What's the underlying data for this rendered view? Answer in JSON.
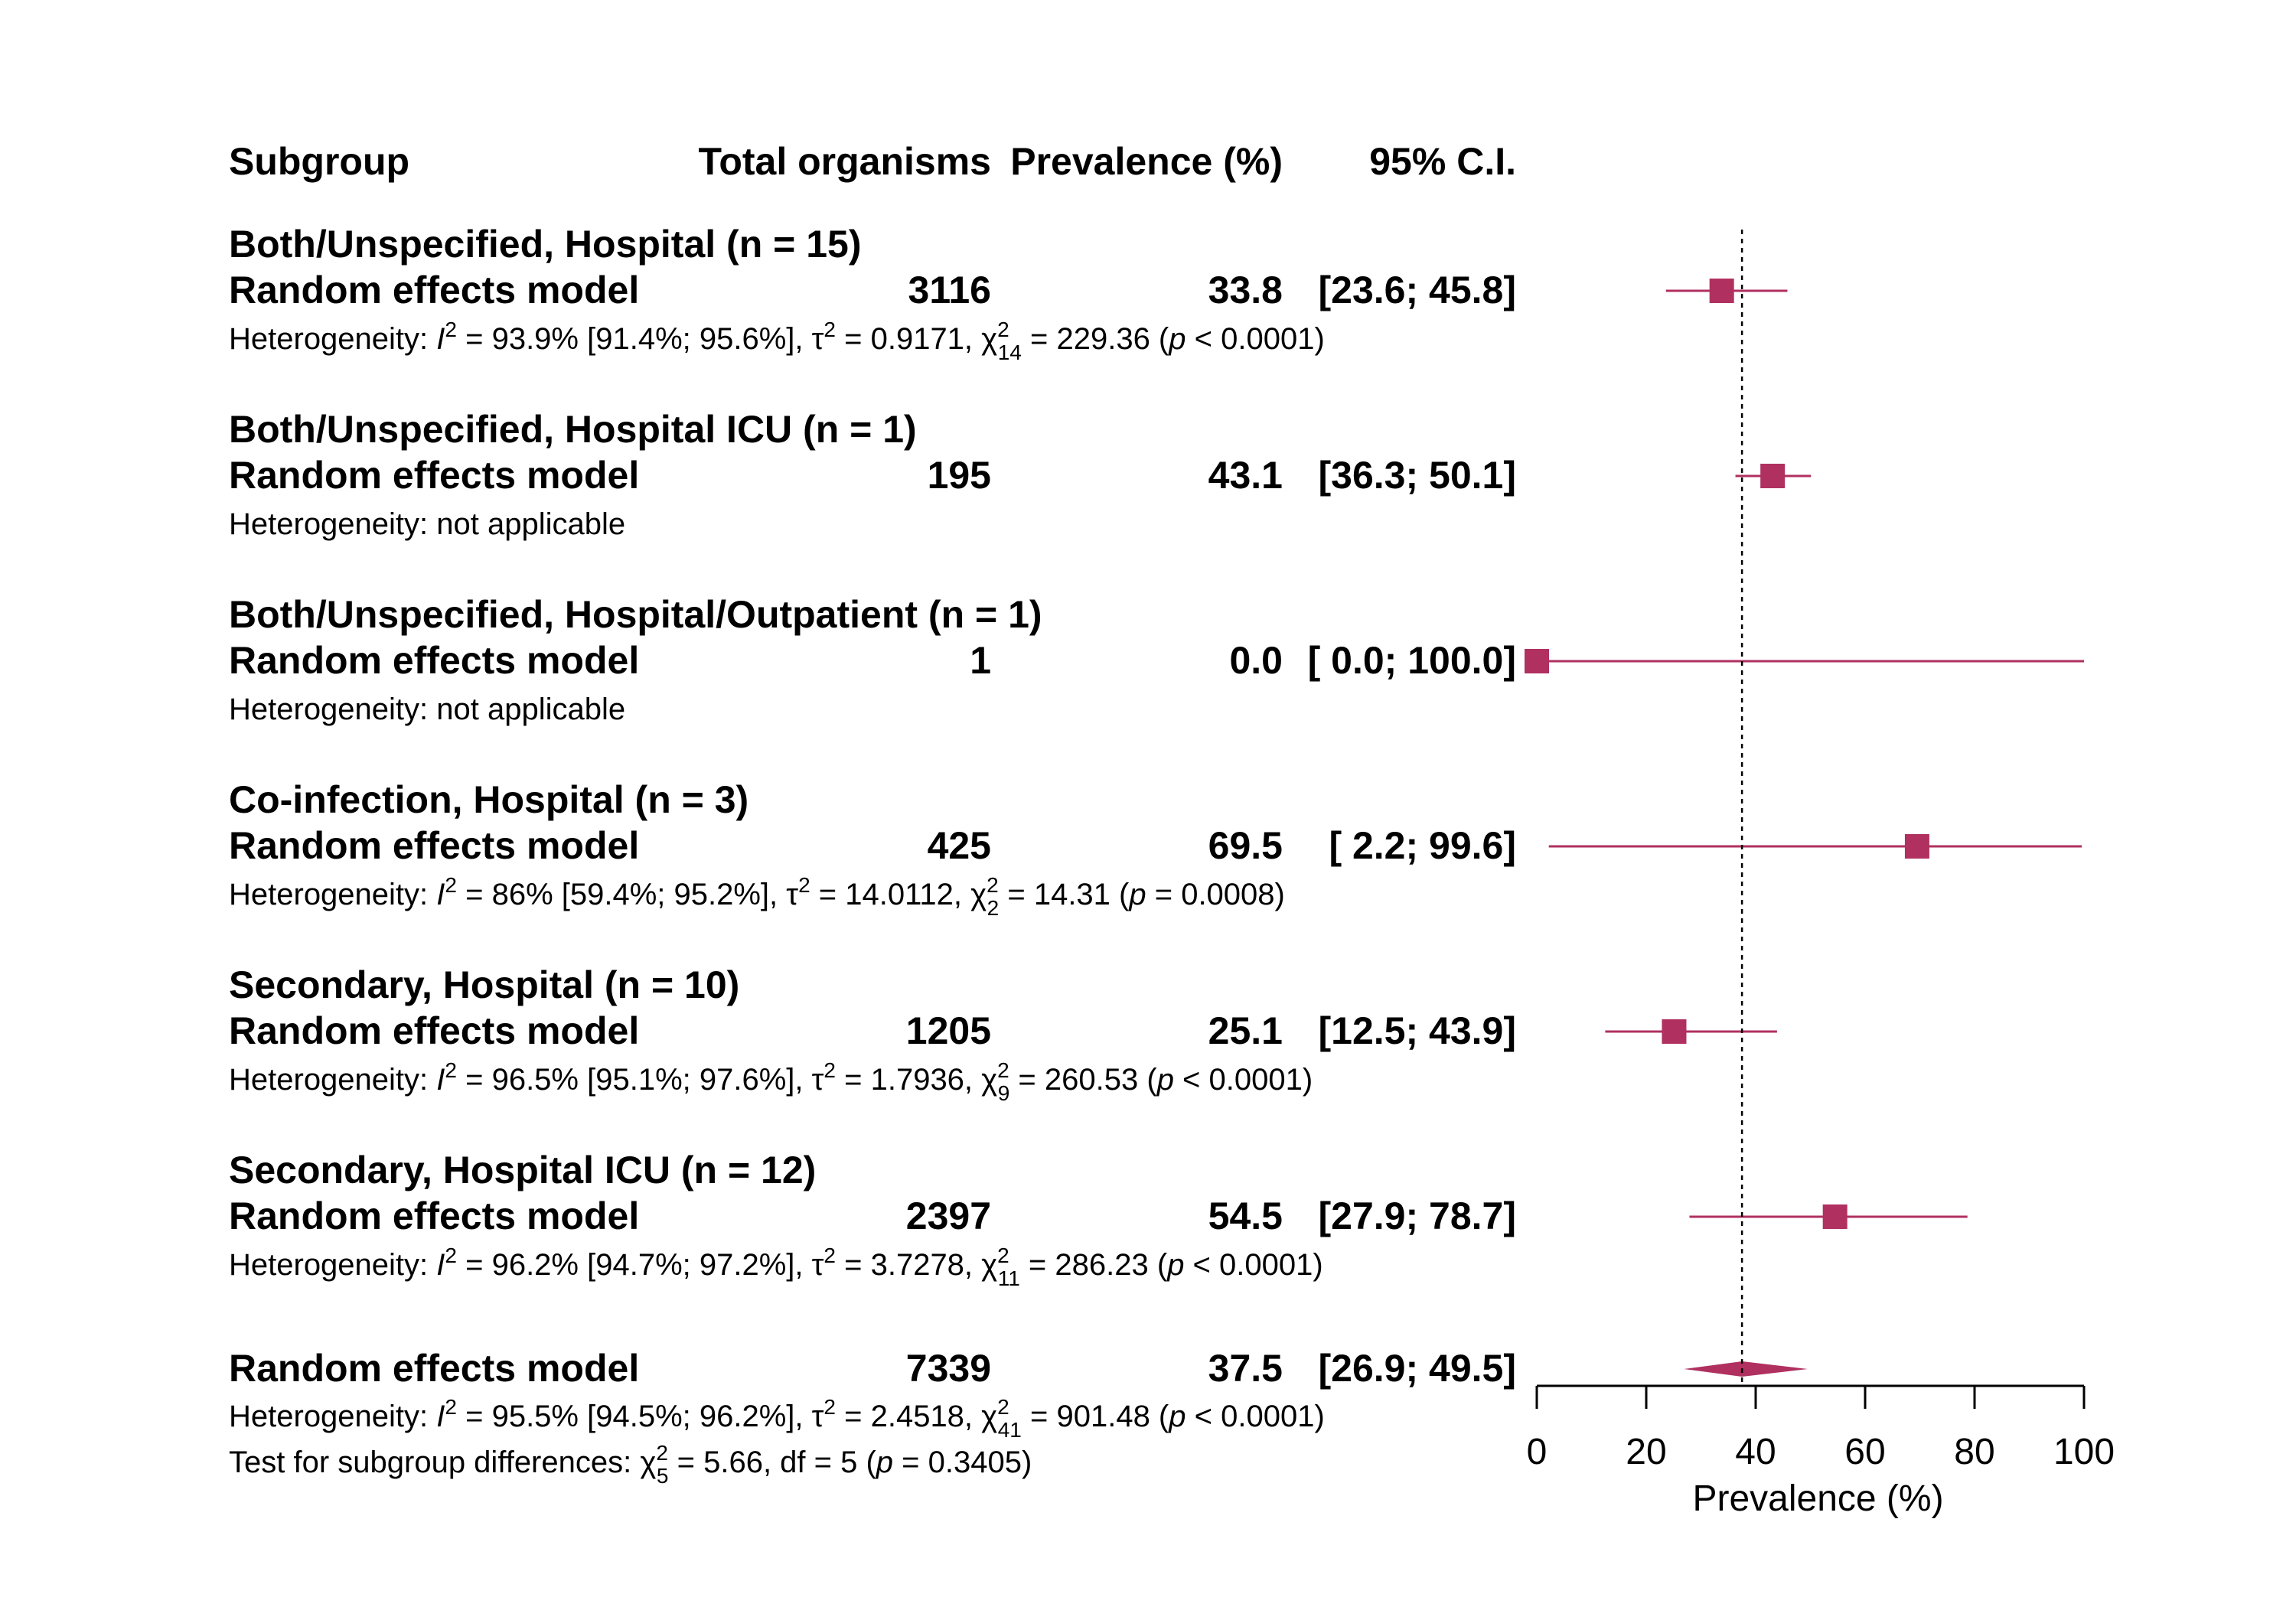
{
  "chart_data": {
    "type": "forest",
    "headers": {
      "subgroup": "Subgroup",
      "total": "Total organisms",
      "prevalence": "Prevalence (%)",
      "ci": "95% C.I."
    },
    "model_label": "Random effects model",
    "subgroups": [
      {
        "title": "Both/Unspecified, Hospital (n = 15)",
        "total": "3116",
        "prev_text": "33.8",
        "ci_text": "[23.6;  45.8]",
        "prev": 33.8,
        "lower": 23.6,
        "upper": 45.8,
        "het": {
          "kind": "stats",
          "I2": "93.9%",
          "I2ci": "[91.4%; 95.6%]",
          "tau2": "0.9171",
          "df": "14",
          "Q": "229.36",
          "p": "< 0.0001"
        }
      },
      {
        "title": "Both/Unspecified, Hospital ICU (n = 1)",
        "total": "195",
        "prev_text": "43.1",
        "ci_text": "[36.3;  50.1]",
        "prev": 43.1,
        "lower": 36.3,
        "upper": 50.1,
        "het": {
          "kind": "text",
          "text": "Heterogeneity: not applicable"
        }
      },
      {
        "title": "Both/Unspecified, Hospital/Outpatient (n = 1)",
        "total": "1",
        "prev_text": "0.0",
        "ci_text": "[ 0.0; 100.0]",
        "prev": 0.0,
        "lower": 0.0,
        "upper": 100.0,
        "het": {
          "kind": "text",
          "text": "Heterogeneity: not applicable"
        }
      },
      {
        "title": "Co-infection, Hospital (n = 3)",
        "total": "425",
        "prev_text": "69.5",
        "ci_text": "[ 2.2;  99.6]",
        "prev": 69.5,
        "lower": 2.2,
        "upper": 99.6,
        "het": {
          "kind": "stats",
          "I2": "86%",
          "I2ci": "[59.4%; 95.2%]",
          "tau2": "14.0112",
          "df": "2",
          "Q": "14.31",
          "p": "= 0.0008"
        }
      },
      {
        "title": "Secondary, Hospital (n = 10)",
        "total": "1205",
        "prev_text": "25.1",
        "ci_text": "[12.5;  43.9]",
        "prev": 25.1,
        "lower": 12.5,
        "upper": 43.9,
        "het": {
          "kind": "stats",
          "I2": "96.5%",
          "I2ci": "[95.1%; 97.6%]",
          "tau2": "1.7936",
          "df": "9",
          "Q": "260.53",
          "p": "< 0.0001"
        }
      },
      {
        "title": "Secondary, Hospital ICU (n = 12)",
        "total": "2397",
        "prev_text": "54.5",
        "ci_text": "[27.9;  78.7]",
        "prev": 54.5,
        "lower": 27.9,
        "upper": 78.7,
        "het": {
          "kind": "stats",
          "I2": "96.2%",
          "I2ci": "[94.7%; 97.2%]",
          "tau2": "3.7278",
          "df": "11",
          "Q": "286.23",
          "p": "< 0.0001"
        }
      }
    ],
    "overall": {
      "total": "7339",
      "prev_text": "37.5",
      "ci_text": "[26.9;  49.5]",
      "prev": 37.5,
      "lower": 26.9,
      "upper": 49.5,
      "het": {
        "kind": "stats",
        "I2": "95.5%",
        "I2ci": "[94.5%; 96.2%]",
        "tau2": "2.4518",
        "df": "41",
        "Q": "901.48",
        "p": "< 0.0001"
      },
      "subgroup_test": {
        "df_sub": "5",
        "Q": "5.66",
        "df": "5",
        "p": "= 0.3405"
      }
    },
    "x_axis": {
      "label": "Prevalence (%)",
      "ticks": [
        0,
        20,
        40,
        60,
        80,
        100
      ],
      "range": [
        0,
        100
      ]
    },
    "reference_line": 37.5,
    "colors": {
      "marker": "#b03060",
      "text": "#000000"
    }
  }
}
